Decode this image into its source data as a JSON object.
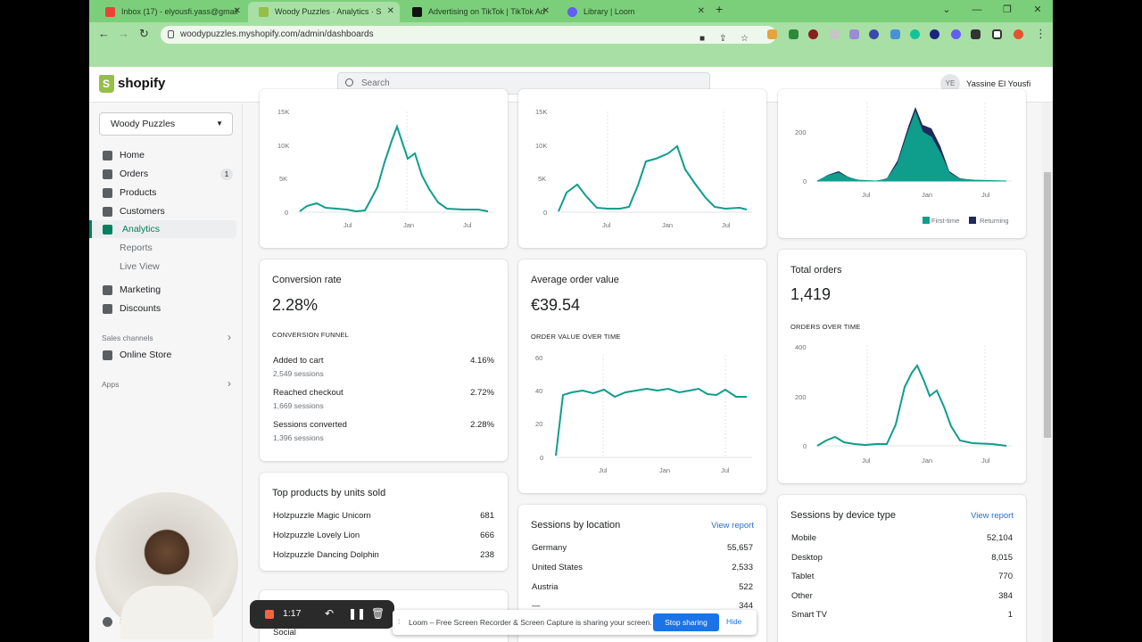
{
  "browser": {
    "tabs": [
      {
        "title": "Inbox (17) - elyousfi.yass@gmail",
        "color": "#ea4335"
      },
      {
        "title": "Woody Puzzles · Analytics · S",
        "color": "#95bf47"
      },
      {
        "title": "Advertising on TikTok | TikTok Ad",
        "color": "#111111"
      },
      {
        "title": "Library | Loom",
        "color": "#625df5"
      }
    ],
    "url": "woodypuzzles.myshopify.com/admin/dashboards"
  },
  "header": {
    "logo": "shopify",
    "search_placeholder": "Search",
    "avatar_initials": "YE",
    "user_name": "Yassine El Yousfi"
  },
  "sidebar": {
    "store": "Woody Puzzles",
    "items": [
      {
        "label": "Home"
      },
      {
        "label": "Orders",
        "badge": "1"
      },
      {
        "label": "Products"
      },
      {
        "label": "Customers"
      },
      {
        "label": "Analytics"
      },
      {
        "label": "Reports"
      },
      {
        "label": "Live View"
      },
      {
        "label": "Marketing"
      },
      {
        "label": "Discounts"
      }
    ],
    "sales_channels": "Sales channels",
    "online_store": "Online Store",
    "apps": "Apps",
    "settings": "Se"
  },
  "top_charts": {
    "c1": {
      "y_ticks": [
        "15K",
        "10K",
        "5K",
        "0"
      ],
      "x_ticks": [
        "Jul",
        "Jan",
        "Jul"
      ]
    },
    "c2": {
      "y_ticks": [
        "15K",
        "10K",
        "5K",
        "0"
      ],
      "x_ticks": [
        "Jul",
        "Jan",
        "Jul"
      ]
    },
    "c3": {
      "y_ticks": [
        "200",
        "0"
      ],
      "x_ticks": [
        "Jul",
        "Jan",
        "Jul"
      ],
      "legend": [
        "First-time",
        "Returning"
      ]
    }
  },
  "conversion": {
    "title": "Conversion rate",
    "value": "2.28%",
    "funnel_label": "CONVERSION FUNNEL",
    "rows": [
      {
        "label": "Added to cart",
        "sessions": "2,549 sessions",
        "pct": "4.16%"
      },
      {
        "label": "Reached checkout",
        "sessions": "1,669 sessions",
        "pct": "2.72%"
      },
      {
        "label": "Sessions converted",
        "sessions": "1,396 sessions",
        "pct": "2.28%"
      }
    ]
  },
  "aov": {
    "title": "Average order value",
    "value": "€39.54",
    "chart_label": "ORDER VALUE OVER TIME",
    "y_ticks": [
      "60",
      "40",
      "20",
      "0"
    ],
    "x_ticks": [
      "Jul",
      "Jan",
      "Jul"
    ]
  },
  "total_orders": {
    "title": "Total orders",
    "value": "1,419",
    "chart_label": "ORDERS OVER TIME",
    "y_ticks": [
      "400",
      "200",
      "0"
    ],
    "x_ticks": [
      "Jul",
      "Jan",
      "Jul"
    ]
  },
  "top_products": {
    "title": "Top products by units sold",
    "rows": [
      {
        "name": "Holzpuzzle Magic Unicorn",
        "units": "681"
      },
      {
        "name": "Holzpuzzle Lovely Lion",
        "units": "666"
      },
      {
        "name": "Holzpuzzle Dancing Dolphin",
        "units": "238"
      }
    ],
    "partial": "Social"
  },
  "sessions_location": {
    "title": "Sessions by location",
    "link": "View report",
    "rows": [
      {
        "name": "Germany",
        "value": "55,657"
      },
      {
        "name": "United States",
        "value": "2,533"
      },
      {
        "name": "Austria",
        "value": "522"
      },
      {
        "name": "—",
        "value": "344"
      }
    ]
  },
  "sessions_device": {
    "title": "Sessions by device type",
    "link": "View report",
    "rows": [
      {
        "name": "Mobile",
        "value": "52,104"
      },
      {
        "name": "Desktop",
        "value": "8,015"
      },
      {
        "name": "Tablet",
        "value": "770"
      },
      {
        "name": "Other",
        "value": "384"
      },
      {
        "name": "Smart TV",
        "value": "1"
      }
    ]
  },
  "recorder": {
    "time": "1:17"
  },
  "share_bar": {
    "message": "Loom – Free Screen Recorder & Screen Capture is sharing your screen.",
    "stop": "Stop sharing",
    "hide": "Hide"
  },
  "colors": {
    "accent": "#008060",
    "teal": "#0f9d8c",
    "navy": "#1f2a5a",
    "tabbar": "#7ccf7a"
  }
}
